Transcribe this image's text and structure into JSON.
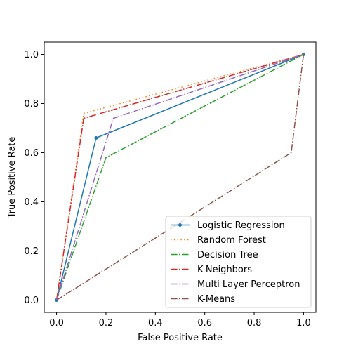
{
  "chart_data": {
    "type": "line",
    "title": "",
    "xlabel": "False Positive Rate",
    "ylabel": "True Positive Rate",
    "xlim": [
      -0.05,
      1.05
    ],
    "ylim": [
      -0.05,
      1.05
    ],
    "xticks": [
      0.0,
      0.2,
      0.4,
      0.6,
      0.8,
      1.0
    ],
    "yticks": [
      0.0,
      0.2,
      0.4,
      0.6,
      0.8,
      1.0
    ],
    "xtick_labels": [
      "0.0",
      "0.2",
      "0.4",
      "0.6",
      "0.8",
      "1.0"
    ],
    "ytick_labels": [
      "0.0",
      "0.2",
      "0.4",
      "0.6",
      "0.8",
      "1.0"
    ],
    "grid": false,
    "legend_position": "lower-right",
    "series": [
      {
        "name": "Logistic Regression",
        "x": [
          0.0,
          0.16,
          1.0
        ],
        "y": [
          0.0,
          0.66,
          1.0
        ],
        "color": "#1f77b4",
        "linestyle": "solid",
        "marker": "dot"
      },
      {
        "name": "Random Forest",
        "x": [
          0.0,
          0.11,
          1.0
        ],
        "y": [
          0.0,
          0.76,
          1.0
        ],
        "color": "#ff7f0e",
        "linestyle": "dotted",
        "marker": "none"
      },
      {
        "name": "Decision Tree",
        "x": [
          0.0,
          0.2,
          1.0
        ],
        "y": [
          0.0,
          0.58,
          1.0
        ],
        "color": "#2ca02c",
        "linestyle": "dashdot",
        "marker": "none"
      },
      {
        "name": "K-Neighbors",
        "x": [
          0.0,
          0.11,
          1.0
        ],
        "y": [
          0.0,
          0.74,
          1.0
        ],
        "color": "#d62728",
        "linestyle": "dashdot",
        "marker": "none"
      },
      {
        "name": "Multi Layer Perceptron",
        "x": [
          0.0,
          0.23,
          1.0
        ],
        "y": [
          0.0,
          0.74,
          1.0
        ],
        "color": "#9467bd",
        "linestyle": "dashdot",
        "marker": "none"
      },
      {
        "name": "K-Means",
        "x": [
          0.0,
          0.95,
          1.0
        ],
        "y": [
          0.0,
          0.6,
          1.0
        ],
        "color": "#8c564b",
        "linestyle": "dashdot",
        "marker": "none"
      }
    ]
  }
}
